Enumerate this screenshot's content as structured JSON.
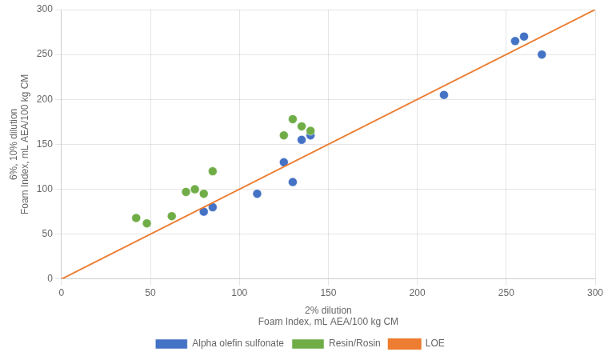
{
  "chart_data": {
    "type": "scatter",
    "xlabel": "2% dilution\nFoam Index, mL AEA/100 kg CM",
    "ylabel": "6%, 10% dilution\nFoam Index, mL AEA/100 kg CM",
    "series": [
      {
        "name": "LOE",
        "type": "line",
        "line_style": "solid",
        "color": "#ED7D31",
        "x": [
          0,
          300
        ],
        "values": [
          0,
          300
        ]
      },
      {
        "name": "Resin/Rosin",
        "type": "scatter",
        "marker": "circle",
        "color": "#70AD47",
        "x": [
          42,
          48,
          62,
          70,
          75,
          80,
          85,
          125,
          130,
          135,
          140
        ],
        "values": [
          68,
          62,
          70,
          97,
          100,
          95,
          120,
          160,
          178,
          170,
          165
        ]
      },
      {
        "name": "Alpha olefin sulfonate",
        "type": "scatter",
        "marker": "circle",
        "color": "#4472C4",
        "x": [
          80,
          85,
          110,
          125,
          130,
          135,
          140,
          215,
          255,
          260,
          270
        ],
        "values": [
          75,
          80,
          95,
          130,
          108,
          155,
          160,
          205,
          265,
          270,
          250
        ]
      }
    ],
    "xlim": [
      0,
      300
    ],
    "ylim": [
      0,
      300
    ],
    "xticks": [
      0,
      50,
      100,
      150,
      200,
      250,
      300
    ],
    "yticks": [
      0,
      50,
      100,
      150,
      200,
      250,
      300
    ],
    "grid": true,
    "legend": "bottom"
  }
}
